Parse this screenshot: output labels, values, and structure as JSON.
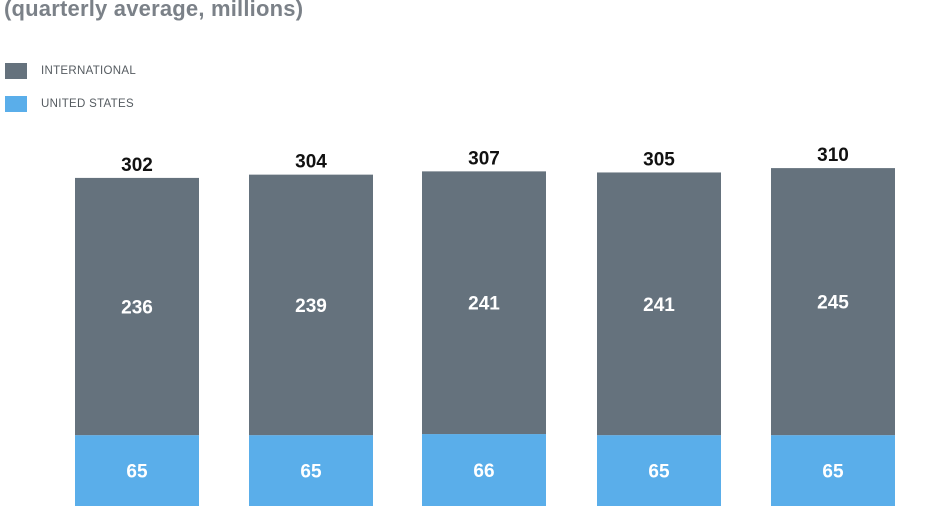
{
  "subtitle": "(quarterly average, millions)",
  "chart_data": {
    "type": "bar",
    "stacked": true,
    "categories": [
      "",
      "",
      "",
      "",
      ""
    ],
    "series": [
      {
        "name": "UNITED STATES",
        "color": "#5aaeea",
        "values": [
          65,
          65,
          66,
          65,
          65
        ]
      },
      {
        "name": "INTERNATIONAL",
        "color": "#65727d",
        "values": [
          236,
          239,
          241,
          241,
          245
        ]
      }
    ],
    "totals": [
      302,
      304,
      307,
      305,
      310
    ],
    "legend_placement": "top-left",
    "grid": false,
    "ylim": [
      0,
      310
    ]
  }
}
